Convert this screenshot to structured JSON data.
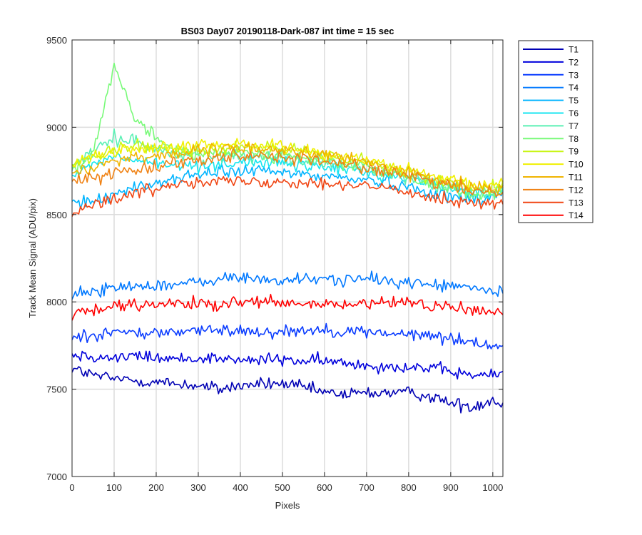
{
  "chart_data": {
    "type": "line",
    "title": "BS03 Day07 20190118-Dark-087 int time = 15 sec",
    "xlabel": "Pixels",
    "ylabel": "Track Mean Signal (ADU/pix)",
    "xlim": [
      0,
      1024
    ],
    "ylim": [
      7000,
      9500
    ],
    "xticks": [
      0,
      100,
      200,
      300,
      400,
      500,
      600,
      700,
      800,
      900,
      1000
    ],
    "yticks": [
      7000,
      7500,
      8000,
      8500,
      9000,
      9500
    ],
    "grid": true,
    "legend_position": "outside-top-right",
    "noise": "high-frequency pixel noise, approx ±50 ADU around each trend",
    "x": [
      0,
      50,
      100,
      150,
      200,
      250,
      300,
      350,
      400,
      450,
      500,
      550,
      600,
      650,
      700,
      750,
      800,
      850,
      900,
      950,
      1000,
      1024
    ],
    "series": [
      {
        "name": "T1",
        "color": "#0000b4",
        "values": [
          7620,
          7580,
          7560,
          7550,
          7540,
          7530,
          7520,
          7500,
          7520,
          7530,
          7530,
          7510,
          7480,
          7470,
          7480,
          7480,
          7480,
          7460,
          7420,
          7400,
          7440,
          7410
        ]
      },
      {
        "name": "T2",
        "color": "#0000dc",
        "values": [
          7700,
          7690,
          7680,
          7690,
          7680,
          7670,
          7680,
          7680,
          7660,
          7670,
          7670,
          7660,
          7660,
          7650,
          7640,
          7630,
          7630,
          7620,
          7600,
          7580,
          7580,
          7590
        ]
      },
      {
        "name": "T3",
        "color": "#0a3cff",
        "values": [
          7800,
          7810,
          7830,
          7820,
          7820,
          7830,
          7840,
          7830,
          7840,
          7830,
          7830,
          7840,
          7840,
          7830,
          7830,
          7820,
          7810,
          7810,
          7790,
          7770,
          7750,
          7750
        ]
      },
      {
        "name": "T4",
        "color": "#0078ff",
        "values": [
          8040,
          8060,
          8080,
          8090,
          8100,
          8100,
          8110,
          8130,
          8140,
          8130,
          8120,
          8130,
          8130,
          8130,
          8130,
          8120,
          8110,
          8100,
          8090,
          8080,
          8060,
          8040
        ]
      },
      {
        "name": "T5",
        "color": "#00b4ff",
        "values": [
          8570,
          8580,
          8620,
          8650,
          8680,
          8710,
          8730,
          8740,
          8750,
          8750,
          8740,
          8730,
          8720,
          8710,
          8700,
          8680,
          8660,
          8630,
          8600,
          8590,
          8600,
          8630
        ]
      },
      {
        "name": "T6",
        "color": "#14e6f0",
        "values": [
          8720,
          8790,
          8830,
          8810,
          8790,
          8780,
          8780,
          8790,
          8800,
          8800,
          8790,
          8780,
          8770,
          8760,
          8740,
          8720,
          8710,
          8690,
          8660,
          8630,
          8620,
          8640
        ]
      },
      {
        "name": "T7",
        "color": "#5af0b4",
        "values": [
          8780,
          8850,
          8940,
          8920,
          8880,
          8840,
          8830,
          8830,
          8840,
          8840,
          8830,
          8810,
          8800,
          8780,
          8760,
          8740,
          8710,
          8680,
          8650,
          8620,
          8610,
          8640
        ]
      },
      {
        "name": "T8",
        "color": "#78fa78",
        "values": [
          8750,
          8860,
          9340,
          9040,
          8940,
          8860,
          8840,
          8850,
          8860,
          8850,
          8840,
          8820,
          8810,
          8790,
          8770,
          8740,
          8710,
          8680,
          8650,
          8620,
          8610,
          8640
        ]
      },
      {
        "name": "T9",
        "color": "#c8f514",
        "values": [
          8780,
          8820,
          8870,
          8890,
          8880,
          8870,
          8870,
          8880,
          8890,
          8890,
          8880,
          8860,
          8840,
          8820,
          8800,
          8770,
          8740,
          8710,
          8680,
          8660,
          8660,
          8680
        ]
      },
      {
        "name": "T10",
        "color": "#f0f000",
        "values": [
          8800,
          8830,
          8860,
          8880,
          8880,
          8880,
          8890,
          8900,
          8910,
          8900,
          8890,
          8870,
          8850,
          8830,
          8810,
          8780,
          8750,
          8720,
          8690,
          8670,
          8670,
          8690
        ]
      },
      {
        "name": "T11",
        "color": "#f0b400",
        "values": [
          8740,
          8770,
          8810,
          8830,
          8840,
          8850,
          8860,
          8870,
          8880,
          8880,
          8870,
          8860,
          8840,
          8820,
          8800,
          8770,
          8740,
          8710,
          8680,
          8660,
          8650,
          8670
        ]
      },
      {
        "name": "T12",
        "color": "#f08214",
        "values": [
          8680,
          8710,
          8740,
          8760,
          8780,
          8800,
          8820,
          8830,
          8840,
          8840,
          8830,
          8820,
          8800,
          8790,
          8770,
          8740,
          8720,
          8690,
          8660,
          8640,
          8630,
          8650
        ]
      },
      {
        "name": "T13",
        "color": "#f04614",
        "values": [
          8510,
          8560,
          8590,
          8620,
          8650,
          8680,
          8700,
          8690,
          8690,
          8690,
          8690,
          8690,
          8680,
          8670,
          8660,
          8650,
          8630,
          8610,
          8580,
          8570,
          8560,
          8560
        ]
      },
      {
        "name": "T14",
        "color": "#ff0000",
        "values": [
          7930,
          7950,
          7970,
          7980,
          7980,
          7990,
          7990,
          7970,
          8000,
          8000,
          7990,
          7980,
          7990,
          7980,
          7990,
          7990,
          8000,
          7980,
          7970,
          7950,
          7940,
          7950
        ]
      }
    ]
  }
}
